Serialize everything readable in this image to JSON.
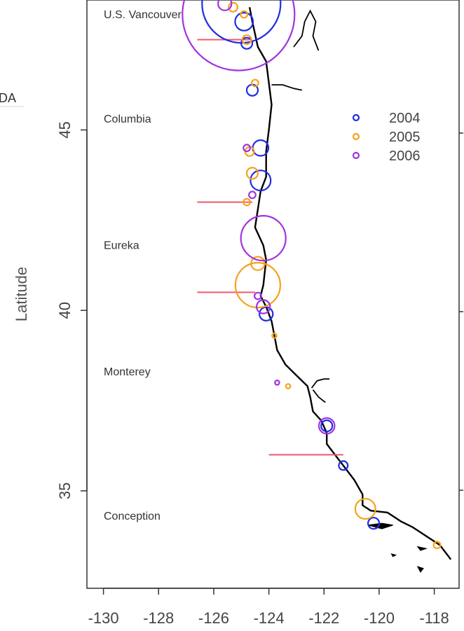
{
  "chart_data": {
    "type": "scatter",
    "title": "",
    "xlabel": "",
    "ylabel": "Latitude",
    "xlim": [
      -130.6,
      -117.1
    ],
    "ylim": [
      32.3,
      48.6
    ],
    "x_ticks": [
      -130,
      -128,
      -126,
      -124,
      -122,
      -120,
      -118
    ],
    "x_tick_labels": [
      "-130",
      "-128",
      "-126",
      "-124",
      "-122",
      "-120",
      "-118"
    ],
    "y_ticks": [
      35,
      40,
      45
    ],
    "y_tick_labels": [
      "35",
      "40",
      "45"
    ],
    "grid": false,
    "legend_position": "top-right",
    "series": [
      {
        "name": "2004",
        "color": "#1f2de0",
        "points": [
          {
            "lon": -125.0,
            "lat": 48.5,
            "size": 3.5
          },
          {
            "lon": -124.9,
            "lat": 48.0,
            "size": 0.8
          },
          {
            "lon": -124.8,
            "lat": 47.4,
            "size": 0.5
          },
          {
            "lon": -124.6,
            "lat": 46.1,
            "size": 0.5
          },
          {
            "lon": -124.3,
            "lat": 44.5,
            "size": 0.7
          },
          {
            "lon": -124.3,
            "lat": 43.6,
            "size": 0.9
          },
          {
            "lon": -124.1,
            "lat": 39.9,
            "size": 0.6
          },
          {
            "lon": -121.9,
            "lat": 36.8,
            "size": 0.5
          },
          {
            "lon": -121.3,
            "lat": 35.7,
            "size": 0.4
          },
          {
            "lon": -120.2,
            "lat": 34.1,
            "size": 0.5
          }
        ]
      },
      {
        "name": "2005",
        "color": "#f5a21c",
        "points": [
          {
            "lon": -125.3,
            "lat": 48.4,
            "size": 0.4
          },
          {
            "lon": -124.9,
            "lat": 48.2,
            "size": 0.3
          },
          {
            "lon": -124.8,
            "lat": 47.5,
            "size": 0.4
          },
          {
            "lon": -124.5,
            "lat": 46.3,
            "size": 0.3
          },
          {
            "lon": -124.7,
            "lat": 44.4,
            "size": 0.4
          },
          {
            "lon": -124.6,
            "lat": 43.8,
            "size": 0.5
          },
          {
            "lon": -124.8,
            "lat": 43.0,
            "size": 0.3
          },
          {
            "lon": -124.4,
            "lat": 41.3,
            "size": 0.6
          },
          {
            "lon": -124.4,
            "lat": 40.7,
            "size": 2.0
          },
          {
            "lon": -123.8,
            "lat": 39.3,
            "size": 0.2
          },
          {
            "lon": -123.3,
            "lat": 37.9,
            "size": 0.2
          },
          {
            "lon": -120.5,
            "lat": 34.5,
            "size": 0.9
          },
          {
            "lon": -117.9,
            "lat": 33.5,
            "size": 0.3
          }
        ]
      },
      {
        "name": "2006",
        "color": "#a233e0",
        "points": [
          {
            "lon": -125.6,
            "lat": 48.5,
            "size": 0.6
          },
          {
            "lon": -125.1,
            "lat": 48.2,
            "size": 5.0
          },
          {
            "lon": -124.8,
            "lat": 44.5,
            "size": 0.3
          },
          {
            "lon": -124.6,
            "lat": 43.2,
            "size": 0.3
          },
          {
            "lon": -124.2,
            "lat": 42.0,
            "size": 2.0
          },
          {
            "lon": -124.4,
            "lat": 40.4,
            "size": 0.3
          },
          {
            "lon": -124.2,
            "lat": 40.1,
            "size": 0.6
          },
          {
            "lon": -123.7,
            "lat": 38.0,
            "size": 0.2
          },
          {
            "lon": -121.9,
            "lat": 36.8,
            "size": 0.7
          }
        ]
      }
    ],
    "boundaries": [
      {
        "lon_start": -126.6,
        "lon_end": -124.7,
        "lat": 47.5
      },
      {
        "lon_start": -126.6,
        "lon_end": -124.6,
        "lat": 43.0
      },
      {
        "lon_start": -126.6,
        "lon_end": -124.5,
        "lat": 40.5
      },
      {
        "lon_start": -124.0,
        "lon_end": -121.3,
        "lat": 36.0
      }
    ],
    "regions": [
      {
        "name": "U.S. Vancouver",
        "lat": 48.1
      },
      {
        "name": "Columbia",
        "lat": 45.2
      },
      {
        "name": "Eureka",
        "lat": 41.7
      },
      {
        "name": "Monterey",
        "lat": 38.2
      },
      {
        "name": "Conception",
        "lat": 34.2
      }
    ],
    "coastline": [
      [
        -124.7,
        48.4
      ],
      [
        -124.6,
        48.0
      ],
      [
        -124.4,
        47.3
      ],
      [
        -124.1,
        46.9
      ],
      [
        -124.0,
        46.3
      ],
      [
        -123.9,
        45.7
      ],
      [
        -124.0,
        45.0
      ],
      [
        -124.1,
        44.4
      ],
      [
        -124.1,
        43.7
      ],
      [
        -124.3,
        43.3
      ],
      [
        -124.4,
        42.8
      ],
      [
        -124.5,
        42.3
      ],
      [
        -124.2,
        41.8
      ],
      [
        -124.1,
        41.4
      ],
      [
        -124.2,
        40.7
      ],
      [
        -124.3,
        40.4
      ],
      [
        -124.1,
        40.1
      ],
      [
        -123.9,
        39.7
      ],
      [
        -123.8,
        39.3
      ],
      [
        -123.7,
        38.9
      ],
      [
        -123.4,
        38.5
      ],
      [
        -123.0,
        38.2
      ],
      [
        -122.6,
        37.9
      ],
      [
        -122.5,
        37.6
      ],
      [
        -122.4,
        37.2
      ],
      [
        -122.1,
        36.95
      ],
      [
        -121.9,
        36.6
      ],
      [
        -121.9,
        36.3
      ],
      [
        -121.5,
        35.9
      ],
      [
        -121.2,
        35.6
      ],
      [
        -120.9,
        35.3
      ],
      [
        -120.6,
        34.9
      ],
      [
        -120.6,
        34.6
      ],
      [
        -120.3,
        34.45
      ],
      [
        -119.7,
        34.4
      ],
      [
        -119.2,
        34.15
      ],
      [
        -118.8,
        34.0
      ],
      [
        -118.4,
        33.8
      ],
      [
        -118.2,
        33.7
      ],
      [
        -117.8,
        33.5
      ],
      [
        -117.4,
        33.1
      ]
    ],
    "inland_waters": [
      [
        [
          -122.2,
          47.2
        ],
        [
          -122.4,
          47.6
        ],
        [
          -122.3,
          48.0
        ],
        [
          -122.5,
          48.3
        ],
        [
          -122.7,
          48.0
        ],
        [
          -122.8,
          47.6
        ],
        [
          -123.1,
          47.3
        ]
      ],
      [
        [
          -123.9,
          46.25
        ],
        [
          -123.5,
          46.25
        ],
        [
          -123.1,
          46.15
        ],
        [
          -122.8,
          46.1
        ]
      ],
      [
        [
          -122.45,
          37.85
        ],
        [
          -122.25,
          38.05
        ],
        [
          -122.0,
          38.1
        ],
        [
          -121.8,
          38.1
        ]
      ],
      [
        [
          -122.4,
          37.8
        ],
        [
          -122.2,
          37.6
        ],
        [
          -121.95,
          37.45
        ]
      ]
    ],
    "islands": [
      [
        [
          -120.4,
          34.05
        ],
        [
          -119.9,
          34.1
        ],
        [
          -119.5,
          34.05
        ],
        [
          -119.9,
          33.95
        ],
        [
          -120.4,
          34.05
        ]
      ],
      [
        [
          -118.6,
          33.45
        ],
        [
          -118.3,
          33.4
        ],
        [
          -118.5,
          33.35
        ],
        [
          -118.6,
          33.45
        ]
      ],
      [
        [
          -118.6,
          32.9
        ],
        [
          -118.4,
          32.85
        ],
        [
          -118.5,
          32.75
        ],
        [
          -118.6,
          32.9
        ]
      ],
      [
        [
          -119.55,
          33.25
        ],
        [
          -119.4,
          33.22
        ],
        [
          -119.5,
          33.18
        ],
        [
          -119.55,
          33.25
        ]
      ]
    ],
    "legend_labels": [
      "2004",
      "2005",
      "2006"
    ]
  },
  "cropped_text": {
    "left_edge": "DA",
    "left_axis_fragment": "Latitude"
  }
}
